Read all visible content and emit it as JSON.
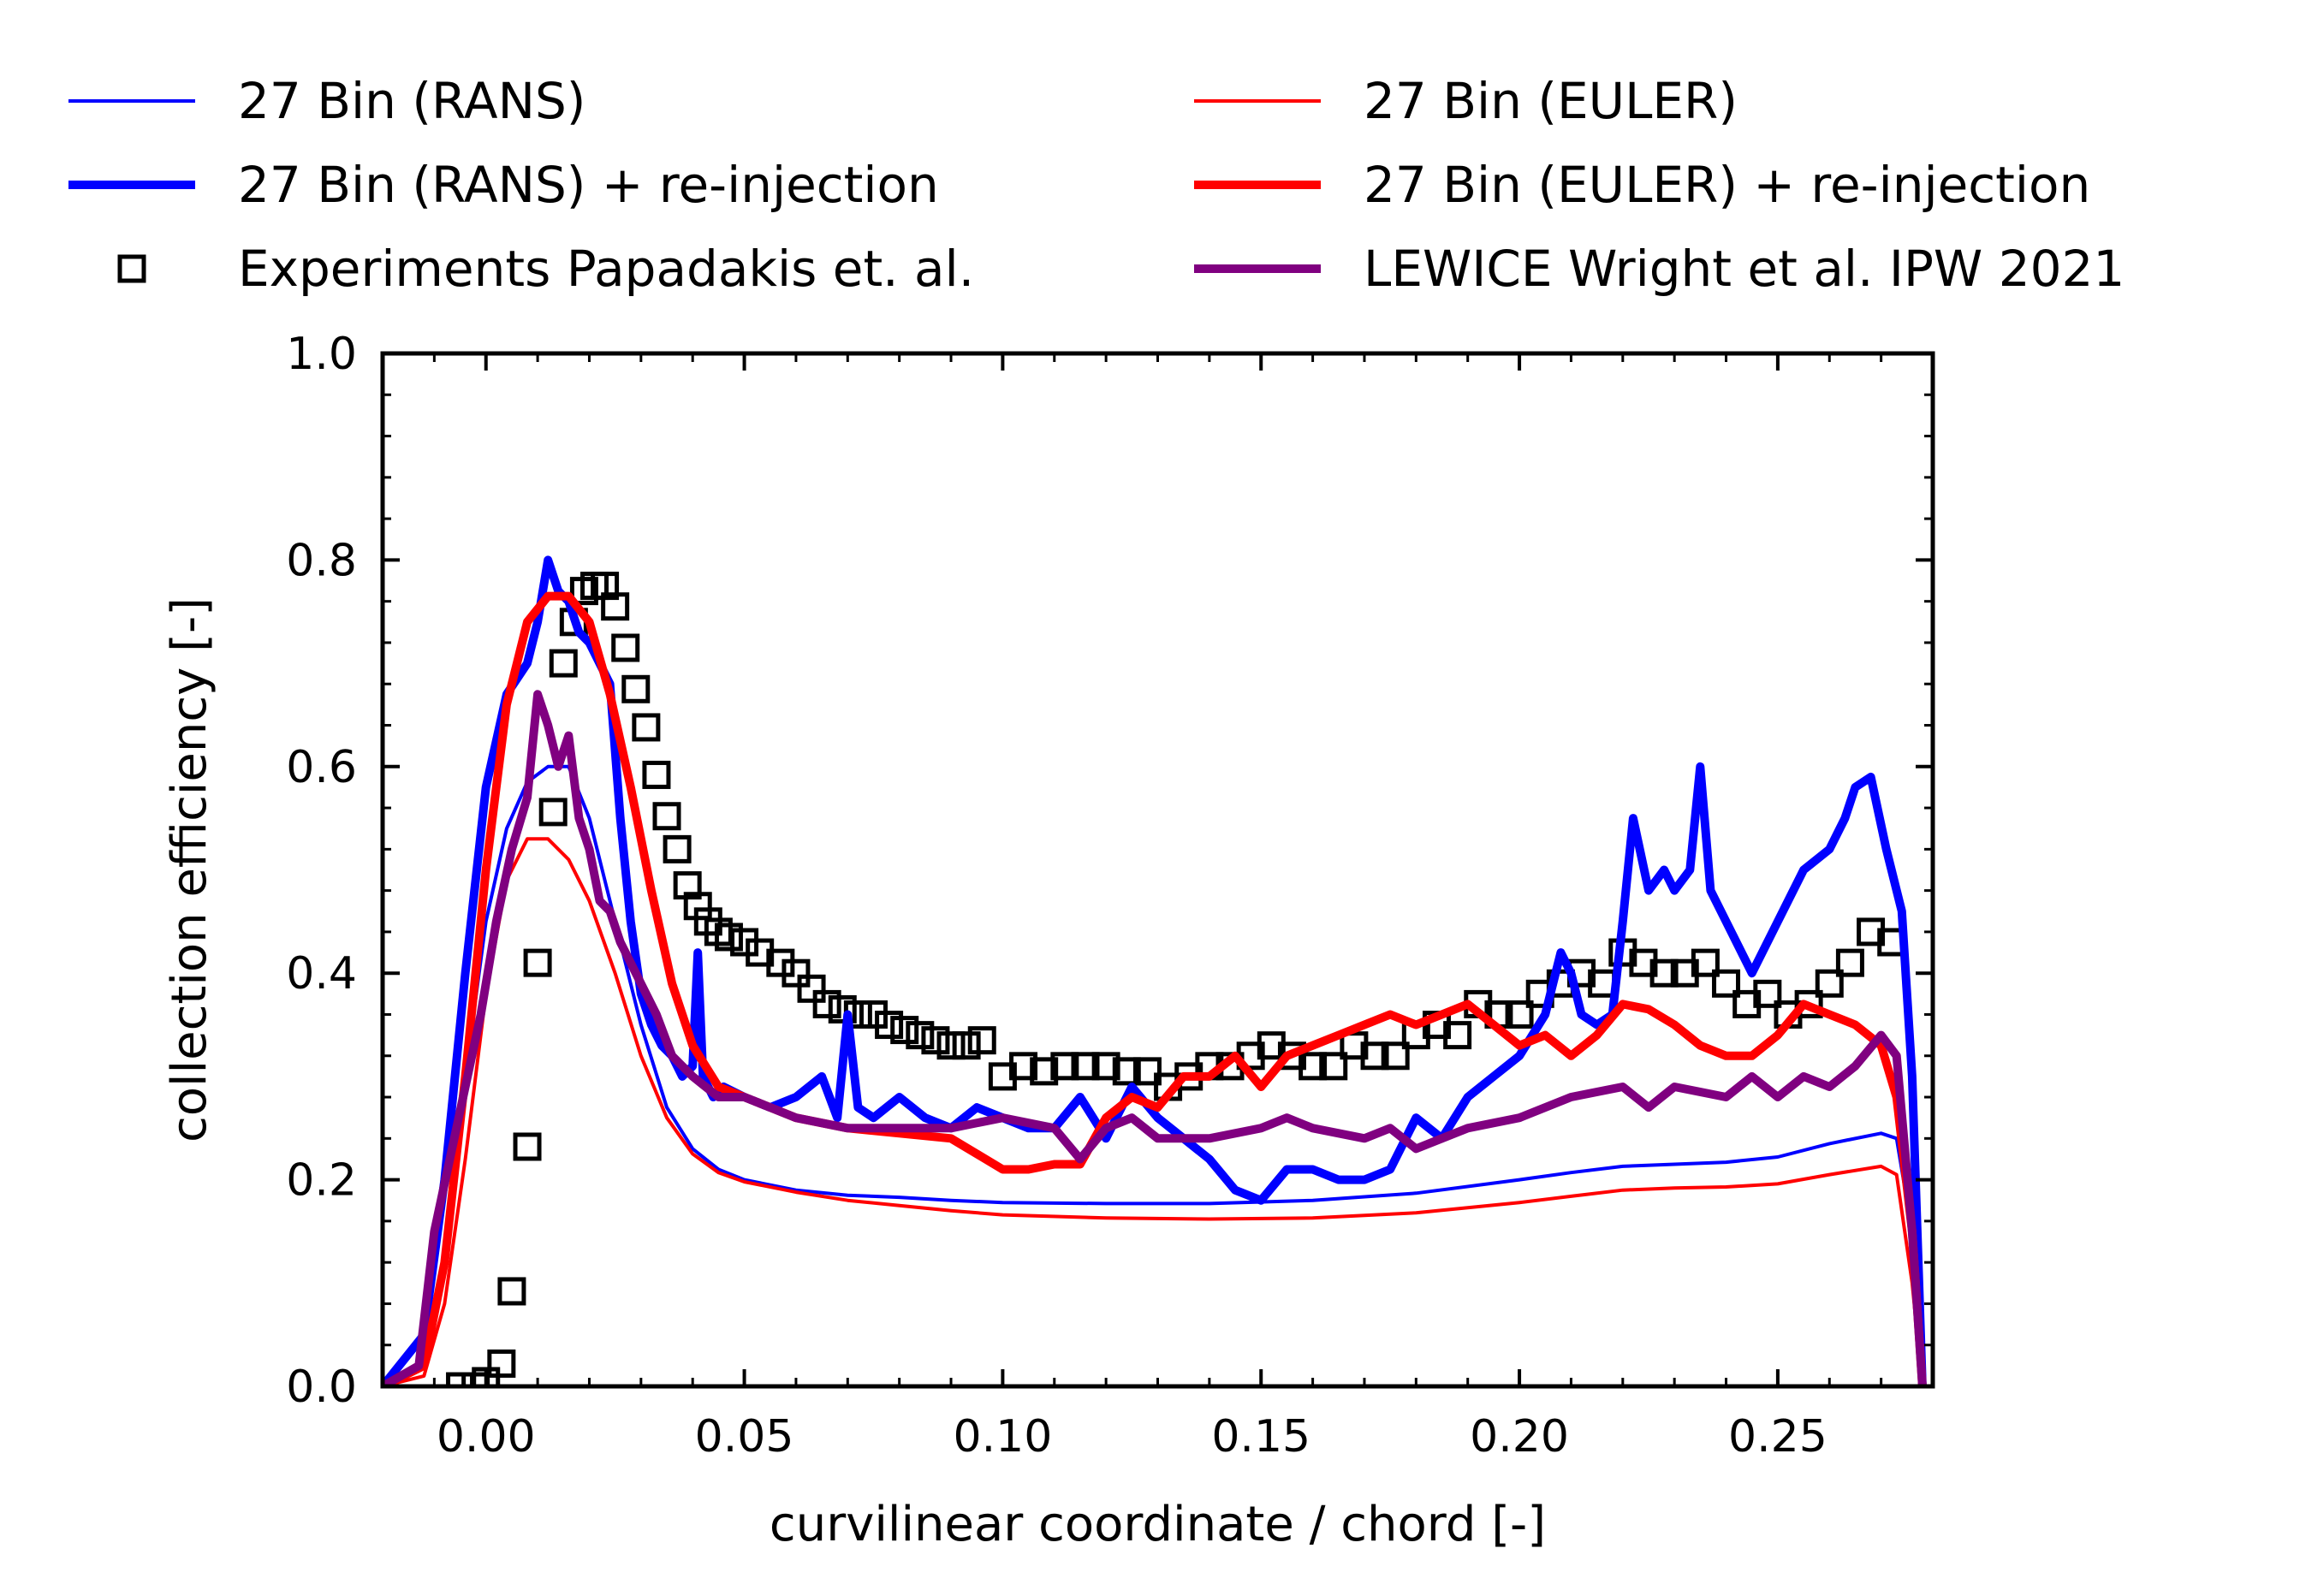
{
  "chart_data": {
    "type": "line",
    "title": "",
    "xlabel": "curvilinear coordinate / chord [-]",
    "ylabel": "collection efficiency [-]",
    "xlim": [
      -0.02,
      0.28
    ],
    "ylim": [
      0.0,
      1.0
    ],
    "xticks": [
      "0.00",
      "0.05",
      "0.10",
      "0.15",
      "0.20",
      "0.25"
    ],
    "xtick_values": [
      0.0,
      0.05,
      0.1,
      0.15,
      0.2,
      0.25
    ],
    "yticks": [
      "0.0",
      "0.2",
      "0.4",
      "0.6",
      "0.8",
      "1.0"
    ],
    "ytick_values": [
      0.0,
      0.2,
      0.4,
      0.6,
      0.8,
      1.0
    ],
    "grid": false,
    "legend_position": "top, two columns above the plot",
    "series": [
      {
        "name": "27 Bin (RANS)",
        "style": "thin-line",
        "color": "#0000ff",
        "x": [
          -0.02,
          -0.012,
          -0.008,
          -0.004,
          0.0,
          0.004,
          0.008,
          0.012,
          0.016,
          0.02,
          0.025,
          0.03,
          0.035,
          0.04,
          0.045,
          0.05,
          0.06,
          0.07,
          0.08,
          0.09,
          0.1,
          0.12,
          0.14,
          0.16,
          0.18,
          0.2,
          0.21,
          0.22,
          0.23,
          0.24,
          0.25,
          0.26,
          0.27,
          0.273,
          0.276,
          0.278
        ],
        "y": [
          0.0,
          0.02,
          0.12,
          0.3,
          0.45,
          0.54,
          0.585,
          0.6,
          0.6,
          0.55,
          0.45,
          0.35,
          0.27,
          0.23,
          0.21,
          0.2,
          0.19,
          0.185,
          0.183,
          0.18,
          0.178,
          0.177,
          0.177,
          0.18,
          0.187,
          0.2,
          0.207,
          0.213,
          0.215,
          0.217,
          0.222,
          0.235,
          0.245,
          0.24,
          0.15,
          0.0
        ]
      },
      {
        "name": "27 Bin (RANS) + re-injection",
        "style": "thick-line",
        "color": "#0000ff",
        "x": [
          -0.02,
          -0.012,
          -0.008,
          -0.004,
          0.0,
          0.004,
          0.008,
          0.01,
          0.012,
          0.014,
          0.016,
          0.018,
          0.02,
          0.022,
          0.024,
          0.026,
          0.028,
          0.03,
          0.032,
          0.034,
          0.036,
          0.038,
          0.04,
          0.041,
          0.042,
          0.044,
          0.046,
          0.05,
          0.055,
          0.06,
          0.065,
          0.068,
          0.07,
          0.072,
          0.075,
          0.08,
          0.085,
          0.09,
          0.095,
          0.1,
          0.105,
          0.11,
          0.115,
          0.12,
          0.125,
          0.13,
          0.135,
          0.14,
          0.145,
          0.15,
          0.155,
          0.16,
          0.165,
          0.17,
          0.175,
          0.18,
          0.185,
          0.19,
          0.195,
          0.2,
          0.205,
          0.208,
          0.21,
          0.212,
          0.215,
          0.218,
          0.22,
          0.222,
          0.225,
          0.228,
          0.23,
          0.233,
          0.235,
          0.237,
          0.24,
          0.245,
          0.25,
          0.255,
          0.26,
          0.263,
          0.265,
          0.268,
          0.271,
          0.274,
          0.276,
          0.278
        ],
        "y": [
          0.0,
          0.05,
          0.2,
          0.4,
          0.58,
          0.67,
          0.7,
          0.74,
          0.8,
          0.77,
          0.76,
          0.73,
          0.72,
          0.7,
          0.68,
          0.55,
          0.45,
          0.38,
          0.35,
          0.33,
          0.32,
          0.3,
          0.31,
          0.42,
          0.3,
          0.28,
          0.29,
          0.28,
          0.27,
          0.28,
          0.3,
          0.26,
          0.36,
          0.27,
          0.26,
          0.28,
          0.26,
          0.25,
          0.27,
          0.26,
          0.25,
          0.25,
          0.28,
          0.24,
          0.29,
          0.26,
          0.24,
          0.22,
          0.19,
          0.18,
          0.21,
          0.21,
          0.2,
          0.2,
          0.21,
          0.26,
          0.24,
          0.28,
          0.3,
          0.32,
          0.36,
          0.42,
          0.4,
          0.36,
          0.35,
          0.36,
          0.45,
          0.55,
          0.48,
          0.5,
          0.48,
          0.5,
          0.6,
          0.48,
          0.45,
          0.4,
          0.45,
          0.5,
          0.52,
          0.55,
          0.58,
          0.59,
          0.52,
          0.46,
          0.3,
          0.0
        ]
      },
      {
        "name": "27 Bin (EULER)",
        "style": "thin-line",
        "color": "#ff0000",
        "x": [
          -0.02,
          -0.012,
          -0.008,
          -0.004,
          0.0,
          0.004,
          0.008,
          0.012,
          0.016,
          0.02,
          0.025,
          0.03,
          0.035,
          0.04,
          0.045,
          0.05,
          0.06,
          0.07,
          0.08,
          0.09,
          0.1,
          0.12,
          0.14,
          0.16,
          0.18,
          0.2,
          0.21,
          0.22,
          0.23,
          0.24,
          0.25,
          0.26,
          0.27,
          0.273,
          0.276,
          0.278
        ],
        "y": [
          0.0,
          0.01,
          0.08,
          0.22,
          0.38,
          0.49,
          0.53,
          0.53,
          0.51,
          0.47,
          0.4,
          0.32,
          0.26,
          0.225,
          0.207,
          0.198,
          0.188,
          0.18,
          0.175,
          0.17,
          0.166,
          0.163,
          0.162,
          0.163,
          0.168,
          0.178,
          0.184,
          0.19,
          0.192,
          0.193,
          0.196,
          0.205,
          0.213,
          0.205,
          0.1,
          0.0
        ]
      },
      {
        "name": "27 Bin (EULER) + re-injection",
        "style": "thick-line",
        "color": "#ff0000",
        "x": [
          -0.02,
          -0.012,
          -0.008,
          -0.004,
          0.0,
          0.004,
          0.008,
          0.012,
          0.016,
          0.02,
          0.024,
          0.028,
          0.032,
          0.036,
          0.04,
          0.045,
          0.05,
          0.06,
          0.07,
          0.08,
          0.09,
          0.1,
          0.105,
          0.11,
          0.115,
          0.12,
          0.125,
          0.13,
          0.135,
          0.14,
          0.145,
          0.15,
          0.155,
          0.16,
          0.165,
          0.17,
          0.175,
          0.18,
          0.185,
          0.19,
          0.195,
          0.2,
          0.205,
          0.21,
          0.215,
          0.22,
          0.225,
          0.23,
          0.235,
          0.24,
          0.245,
          0.25,
          0.255,
          0.26,
          0.265,
          0.27,
          0.273,
          0.276,
          0.278
        ],
        "y": [
          0.0,
          0.02,
          0.12,
          0.3,
          0.5,
          0.66,
          0.74,
          0.765,
          0.765,
          0.74,
          0.67,
          0.58,
          0.48,
          0.39,
          0.33,
          0.29,
          0.28,
          0.26,
          0.25,
          0.245,
          0.24,
          0.21,
          0.21,
          0.215,
          0.215,
          0.26,
          0.28,
          0.27,
          0.3,
          0.3,
          0.32,
          0.29,
          0.32,
          0.33,
          0.34,
          0.35,
          0.36,
          0.35,
          0.36,
          0.37,
          0.35,
          0.33,
          0.34,
          0.32,
          0.34,
          0.37,
          0.365,
          0.35,
          0.33,
          0.32,
          0.32,
          0.34,
          0.37,
          0.36,
          0.35,
          0.33,
          0.28,
          0.15,
          0.0
        ]
      },
      {
        "name": "Experiments Papadakis et. al.",
        "style": "square-markers",
        "color": "#000000",
        "x": [
          -0.005,
          -0.002,
          0.0,
          0.003,
          0.005,
          0.008,
          0.01,
          0.013,
          0.015,
          0.017,
          0.019,
          0.021,
          0.023,
          0.025,
          0.027,
          0.029,
          0.031,
          0.033,
          0.035,
          0.037,
          0.039,
          0.041,
          0.043,
          0.045,
          0.047,
          0.05,
          0.053,
          0.057,
          0.06,
          0.063,
          0.066,
          0.069,
          0.072,
          0.075,
          0.078,
          0.081,
          0.084,
          0.087,
          0.09,
          0.093,
          0.096,
          0.1,
          0.104,
          0.108,
          0.112,
          0.116,
          0.12,
          0.124,
          0.128,
          0.132,
          0.136,
          0.14,
          0.144,
          0.148,
          0.152,
          0.156,
          0.16,
          0.164,
          0.168,
          0.172,
          0.176,
          0.18,
          0.184,
          0.188,
          0.192,
          0.196,
          0.2,
          0.204,
          0.208,
          0.212,
          0.216,
          0.22,
          0.224,
          0.228,
          0.232,
          0.236,
          0.24,
          0.244,
          0.248,
          0.252,
          0.256,
          0.26,
          0.264,
          0.268,
          0.272
        ],
        "y": [
          0.0,
          0.0,
          0.005,
          0.022,
          0.092,
          0.232,
          0.41,
          0.556,
          0.7,
          0.74,
          0.77,
          0.775,
          0.775,
          0.755,
          0.715,
          0.675,
          0.638,
          0.592,
          0.552,
          0.52,
          0.485,
          0.465,
          0.45,
          0.44,
          0.435,
          0.43,
          0.42,
          0.41,
          0.4,
          0.385,
          0.37,
          0.365,
          0.36,
          0.36,
          0.35,
          0.345,
          0.34,
          0.335,
          0.33,
          0.33,
          0.335,
          0.3,
          0.31,
          0.305,
          0.31,
          0.31,
          0.31,
          0.305,
          0.305,
          0.29,
          0.3,
          0.31,
          0.31,
          0.32,
          0.33,
          0.32,
          0.31,
          0.31,
          0.33,
          0.32,
          0.32,
          0.34,
          0.35,
          0.34,
          0.37,
          0.36,
          0.36,
          0.38,
          0.39,
          0.4,
          0.39,
          0.42,
          0.41,
          0.4,
          0.4,
          0.41,
          0.39,
          0.37,
          0.38,
          0.36,
          0.37,
          0.39,
          0.41,
          0.44,
          0.43
        ]
      },
      {
        "name": "LEWICE Wright et al. IPW 2021",
        "style": "thick-line",
        "color": "#800080",
        "x": [
          -0.02,
          -0.013,
          -0.01,
          -0.007,
          -0.004,
          -0.001,
          0.002,
          0.005,
          0.008,
          0.01,
          0.012,
          0.014,
          0.016,
          0.018,
          0.02,
          0.022,
          0.024,
          0.026,
          0.028,
          0.03,
          0.033,
          0.036,
          0.04,
          0.045,
          0.05,
          0.055,
          0.06,
          0.07,
          0.08,
          0.09,
          0.1,
          0.11,
          0.115,
          0.12,
          0.125,
          0.13,
          0.14,
          0.15,
          0.155,
          0.16,
          0.17,
          0.175,
          0.18,
          0.185,
          0.19,
          0.2,
          0.21,
          0.22,
          0.225,
          0.23,
          0.24,
          0.245,
          0.25,
          0.255,
          0.26,
          0.265,
          0.27,
          0.273,
          0.276,
          0.278
        ],
        "y": [
          0.0,
          0.02,
          0.15,
          0.22,
          0.29,
          0.36,
          0.45,
          0.52,
          0.57,
          0.67,
          0.64,
          0.6,
          0.63,
          0.55,
          0.52,
          0.47,
          0.46,
          0.43,
          0.41,
          0.39,
          0.36,
          0.32,
          0.3,
          0.28,
          0.28,
          0.27,
          0.26,
          0.25,
          0.25,
          0.25,
          0.26,
          0.25,
          0.22,
          0.25,
          0.26,
          0.24,
          0.24,
          0.25,
          0.26,
          0.25,
          0.24,
          0.25,
          0.23,
          0.24,
          0.25,
          0.26,
          0.28,
          0.29,
          0.27,
          0.29,
          0.28,
          0.3,
          0.28,
          0.3,
          0.29,
          0.31,
          0.34,
          0.32,
          0.15,
          0.0
        ]
      }
    ]
  }
}
